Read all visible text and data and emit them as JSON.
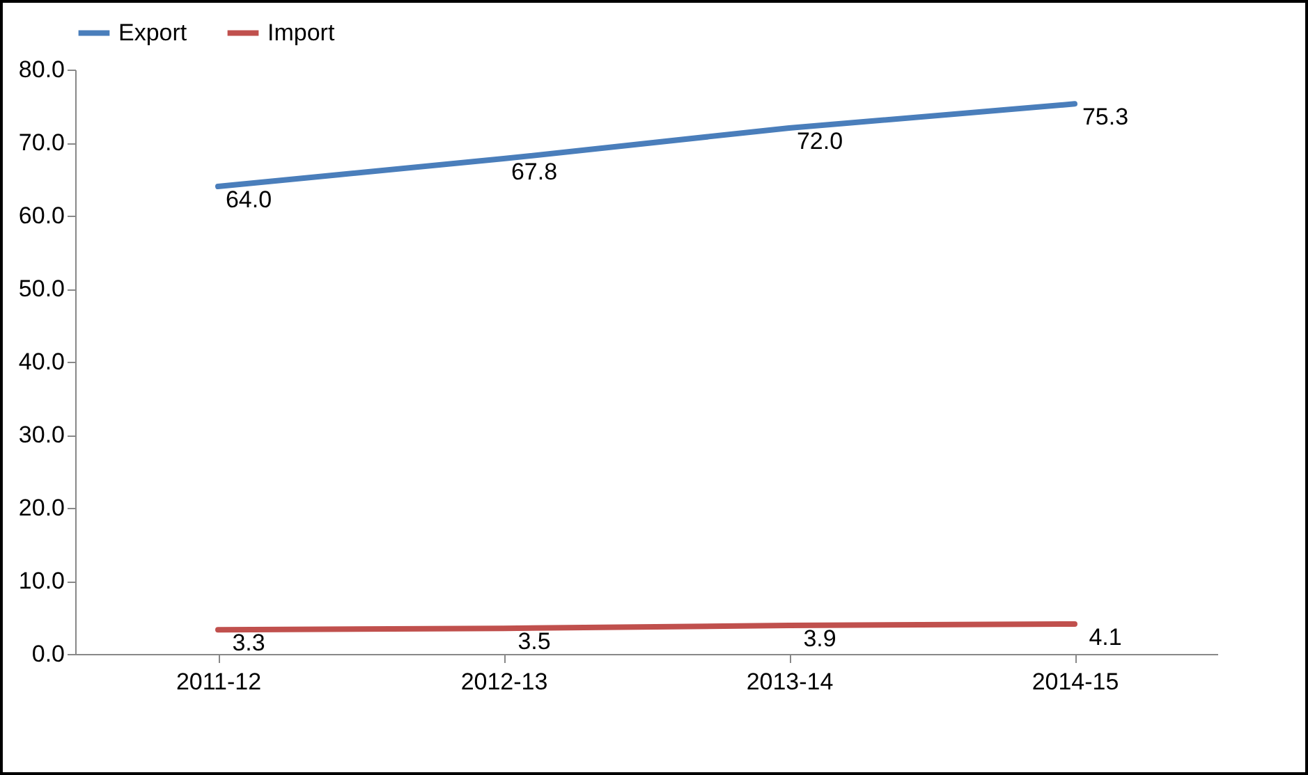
{
  "chart_data": {
    "type": "line",
    "categories": [
      "2011-12",
      "2012-13",
      "2013-14",
      "2014-15"
    ],
    "series": [
      {
        "name": "Export",
        "color": "#4a7ebb",
        "values": [
          64.0,
          67.8,
          72.0,
          75.3
        ],
        "value_labels": [
          "64.0",
          "67.8",
          "72.0",
          "75.3"
        ]
      },
      {
        "name": "Import",
        "color": "#c0504d",
        "values": [
          3.3,
          3.5,
          3.9,
          4.1
        ],
        "value_labels": [
          "3.3",
          "3.5",
          "3.9",
          "4.1"
        ]
      }
    ],
    "ylim": [
      0,
      80
    ],
    "yticks": [
      {
        "value": 0,
        "label": "0.0"
      },
      {
        "value": 10,
        "label": "10.0"
      },
      {
        "value": 20,
        "label": "20.0"
      },
      {
        "value": 30,
        "label": "30.0"
      },
      {
        "value": 40,
        "label": "40.0"
      },
      {
        "value": 50,
        "label": "50.0"
      },
      {
        "value": 60,
        "label": "60.0"
      },
      {
        "value": 70,
        "label": "70.0"
      },
      {
        "value": 80,
        "label": "80.0"
      }
    ],
    "legend": "top",
    "marker": "none",
    "line_style": "solid",
    "grid": false
  }
}
